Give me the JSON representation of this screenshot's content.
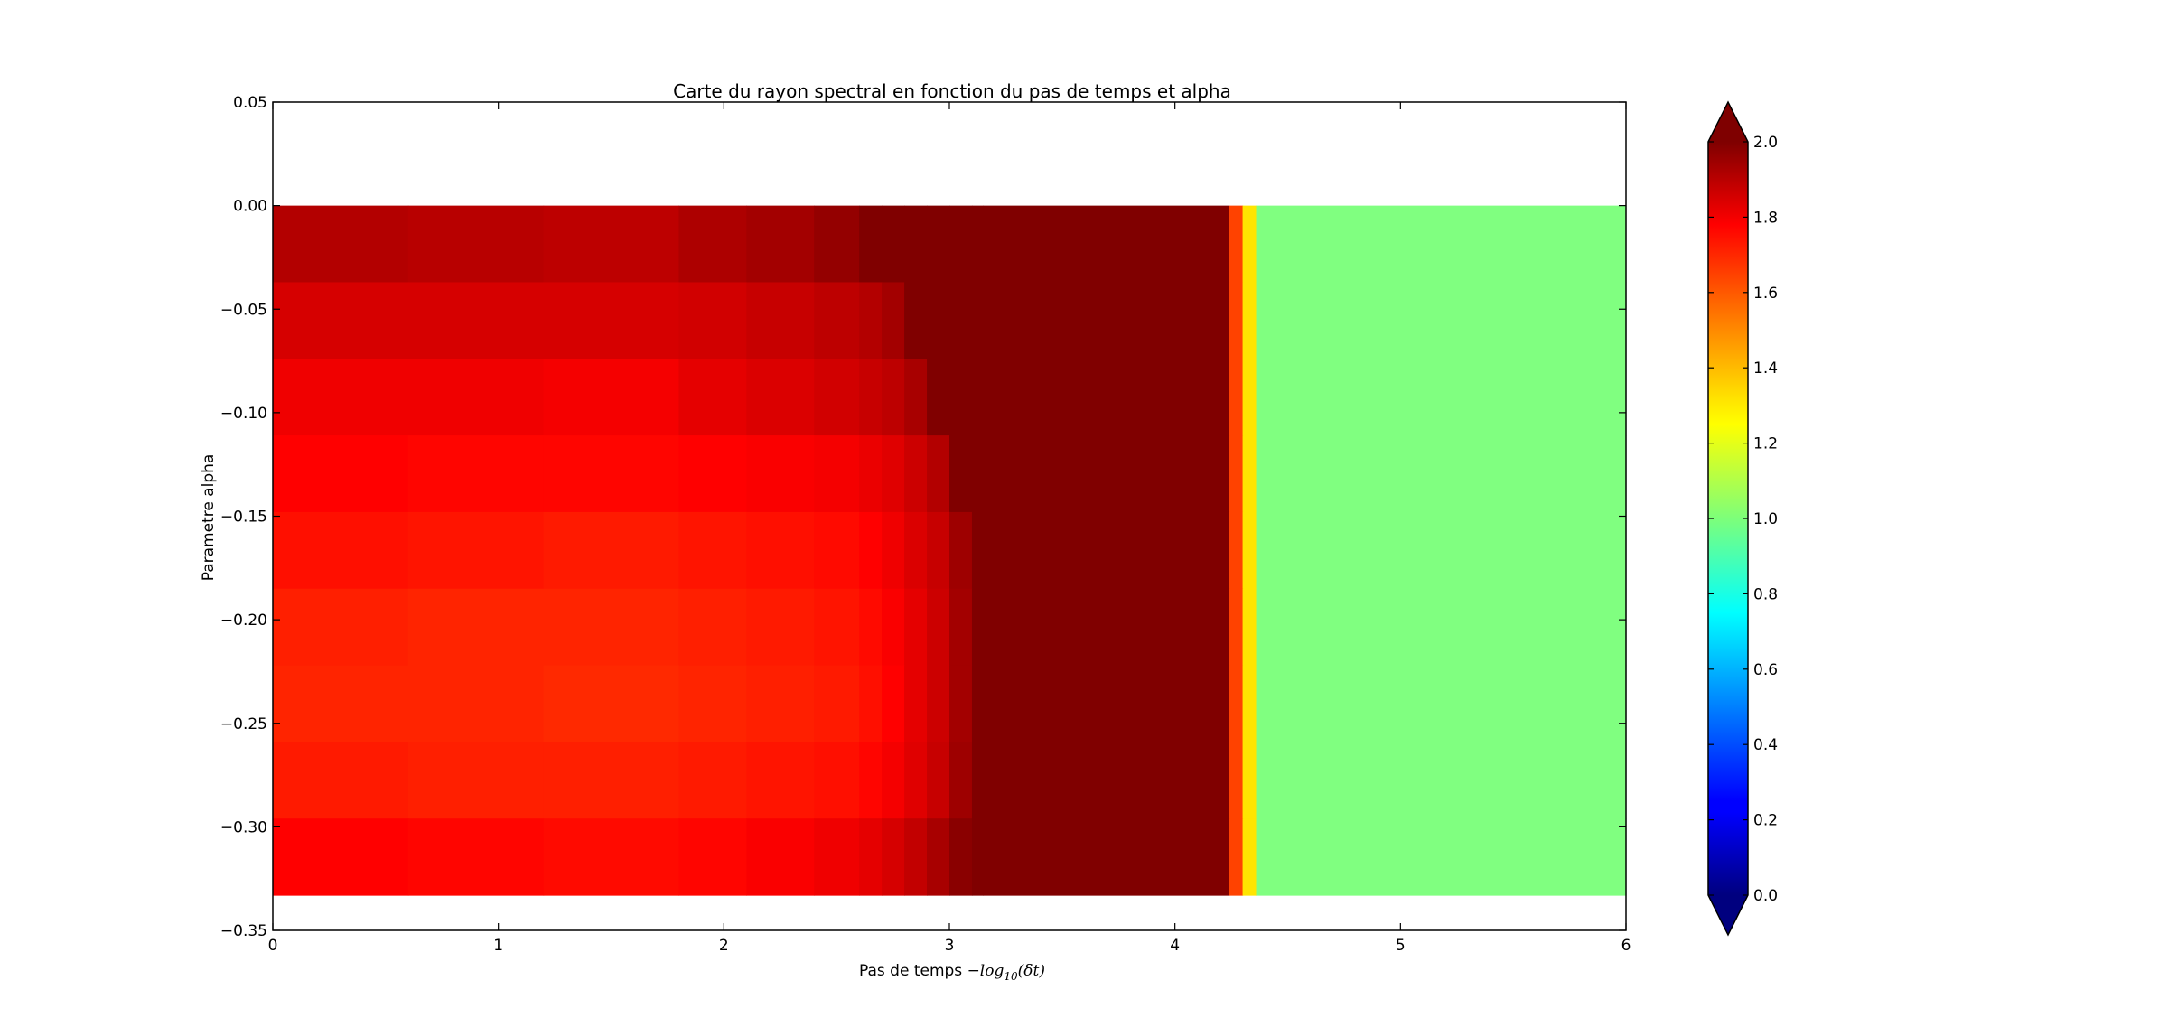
{
  "chart_data": {
    "type": "heatmap",
    "title": "Carte du rayon spectral en fonction du pas de temps et alpha",
    "xlabel_text": "Pas de temps ",
    "xlabel_math": "−log",
    "xlabel_math_sub": "10",
    "xlabel_math_arg": "(δt)",
    "ylabel": "Parametre alpha",
    "xlim": [
      0,
      6
    ],
    "ylim": [
      -0.35,
      0.05
    ],
    "xticks": [
      "0",
      "1",
      "2",
      "3",
      "4",
      "5",
      "6"
    ],
    "yticks": [
      "0.05",
      "0.00",
      "−0.05",
      "−0.10",
      "−0.15",
      "−0.20",
      "−0.25",
      "−0.30",
      "−0.35"
    ],
    "xtick_values": [
      0,
      1,
      2,
      3,
      4,
      5,
      6
    ],
    "ytick_values": [
      0.05,
      0.0,
      -0.05,
      -0.1,
      -0.15,
      -0.2,
      -0.25,
      -0.3,
      -0.35
    ],
    "colormap": "jet",
    "colorbar": {
      "min": 0.0,
      "max": 2.0,
      "extend": "both",
      "ticks": [
        "0.0",
        "0.2",
        "0.4",
        "0.6",
        "0.8",
        "1.0",
        "1.2",
        "1.4",
        "1.6",
        "1.8",
        "2.0"
      ],
      "tick_values": [
        0.0,
        0.2,
        0.4,
        0.6,
        0.8,
        1.0,
        1.2,
        1.4,
        1.6,
        1.8,
        2.0
      ]
    },
    "y_range": [
      -0.333,
      0.0
    ],
    "alpha_rows": [
      0.0,
      -0.037,
      -0.074,
      -0.111,
      -0.148,
      -0.185,
      -0.222,
      -0.259,
      -0.296
    ],
    "x_bins": [
      0,
      0.6,
      1.2,
      1.8,
      2.1,
      2.4,
      2.6,
      2.7,
      2.8,
      2.9,
      3.0,
      3.1,
      3.15,
      4.24,
      4.3,
      4.36,
      6.0
    ],
    "values": [
      [
        1.9,
        1.89,
        1.88,
        1.91,
        1.93,
        1.96,
        2.0,
        2.0,
        2.0,
        2.0,
        2.0,
        2.0,
        2.0,
        1.62,
        1.3,
        1.0
      ],
      [
        1.83,
        1.83,
        1.83,
        1.84,
        1.86,
        1.88,
        1.9,
        1.93,
        2.0,
        2.0,
        2.0,
        2.0,
        2.0,
        1.62,
        1.3,
        1.0
      ],
      [
        1.78,
        1.78,
        1.77,
        1.8,
        1.82,
        1.84,
        1.86,
        1.88,
        1.92,
        2.0,
        2.0,
        2.0,
        2.0,
        1.62,
        1.3,
        1.0
      ],
      [
        1.75,
        1.74,
        1.74,
        1.75,
        1.76,
        1.77,
        1.79,
        1.81,
        1.85,
        1.9,
        2.0,
        2.0,
        2.0,
        1.62,
        1.3,
        1.0
      ],
      [
        1.72,
        1.71,
        1.7,
        1.71,
        1.72,
        1.73,
        1.75,
        1.78,
        1.82,
        1.86,
        1.94,
        2.0,
        2.0,
        1.62,
        1.3,
        1.0
      ],
      [
        1.69,
        1.68,
        1.68,
        1.69,
        1.7,
        1.71,
        1.73,
        1.76,
        1.8,
        1.85,
        1.93,
        2.0,
        2.0,
        1.62,
        1.3,
        1.0
      ],
      [
        1.68,
        1.68,
        1.67,
        1.68,
        1.69,
        1.7,
        1.72,
        1.75,
        1.8,
        1.85,
        1.93,
        2.0,
        2.0,
        1.62,
        1.3,
        1.0
      ],
      [
        1.7,
        1.69,
        1.69,
        1.7,
        1.71,
        1.72,
        1.74,
        1.77,
        1.81,
        1.86,
        1.94,
        2.0,
        2.0,
        1.62,
        1.3,
        1.0
      ],
      [
        1.75,
        1.74,
        1.73,
        1.74,
        1.76,
        1.78,
        1.8,
        1.83,
        1.87,
        1.92,
        1.98,
        2.0,
        2.0,
        1.62,
        1.3,
        1.0
      ]
    ]
  }
}
